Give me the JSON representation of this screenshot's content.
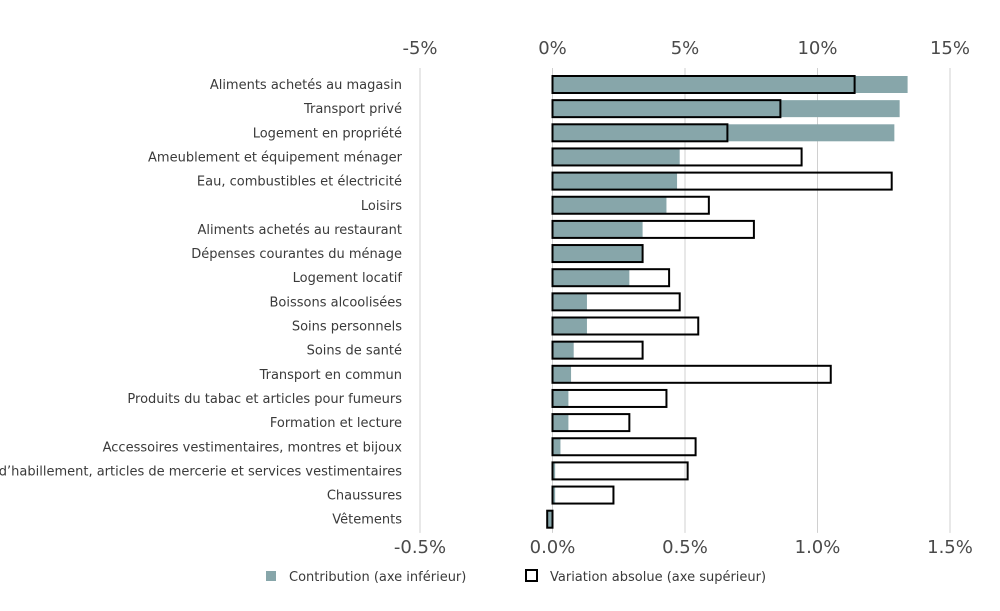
{
  "chart_data": {
    "type": "bar",
    "orientation": "horizontal",
    "categories": [
      "Aliments achetés au magasin",
      "Transport privé",
      "Logement en propriété",
      "Ameublement et équipement ménager",
      "Eau, combustibles et électricité",
      "Loisirs",
      "Aliments achetés au restaurant",
      "Dépenses courantes du ménage",
      "Logement locatif",
      "Boissons alcoolisées",
      "Soins personnels",
      "Soins de santé",
      "Transport en commun",
      "Produits du tabac et articles pour fumeurs",
      "Formation et lecture",
      "Accessoires vestimentaires, montres et bijoux",
      "Tissus d’habillement, articles de mercerie et services vestimentaires",
      "Chaussures",
      "Vêtements"
    ],
    "series": [
      {
        "name": "Contribution (axe inférieur)",
        "axis": "bottom",
        "color": "#87a6aa",
        "values": [
          1.34,
          1.31,
          1.29,
          0.48,
          0.47,
          0.43,
          0.34,
          0.34,
          0.29,
          0.13,
          0.13,
          0.08,
          0.07,
          0.06,
          0.06,
          0.03,
          0.01,
          0.01,
          -0.02
        ]
      },
      {
        "name": "Variation absolue (axe supérieur)",
        "axis": "top",
        "color": "#000000",
        "values": [
          11.4,
          8.6,
          6.6,
          9.4,
          12.8,
          5.9,
          7.6,
          3.4,
          4.4,
          4.8,
          5.5,
          3.4,
          10.5,
          4.3,
          2.9,
          5.4,
          5.1,
          2.3,
          -0.2
        ]
      }
    ],
    "top_axis": {
      "min": -5,
      "max": 15,
      "ticks": [
        -5,
        0,
        5,
        10,
        15
      ],
      "labels": [
        "-5%",
        "0%",
        "5%",
        "10%",
        "15%"
      ]
    },
    "bottom_axis": {
      "min": -0.5,
      "max": 1.5,
      "ticks": [
        -0.5,
        0.0,
        0.5,
        1.0,
        1.5
      ],
      "labels": [
        "-0.5%",
        "0.0%",
        "0.5%",
        "1.0%",
        "1.5%"
      ]
    },
    "grid": true,
    "legend_position": "bottom",
    "title": "",
    "xlabel": "",
    "ylabel": ""
  },
  "legend": {
    "contribution": "Contribution (axe inférieur)",
    "variation": "Variation absolue (axe supérieur)"
  },
  "colors": {
    "contribution_fill": "#87a6aa",
    "variation_stroke": "#000000",
    "gridline": "#d0d0d0"
  }
}
